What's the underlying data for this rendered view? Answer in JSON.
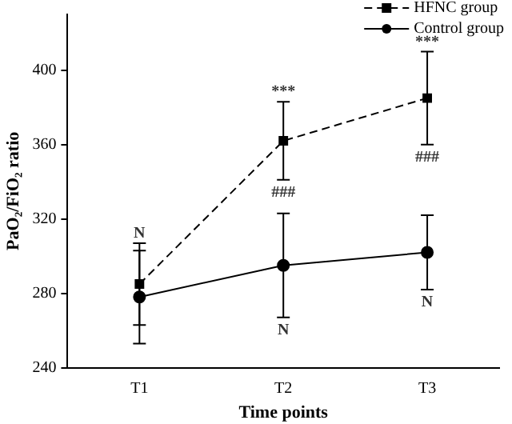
{
  "chart_data": {
    "type": "line",
    "xlabel": "Time points",
    "ylabel": "PaO₂/FiO₂ ratio",
    "categories": [
      "T1",
      "T2",
      "T3"
    ],
    "series": [
      {
        "name": "HFNC group",
        "color": "#000000",
        "marker": "square",
        "line_style": "dashed",
        "values": [
          285,
          362,
          385
        ],
        "errors": [
          [
            263,
            307
          ],
          [
            341,
            383
          ],
          [
            360,
            410
          ]
        ]
      },
      {
        "name": "Control group",
        "color": "#000000",
        "marker": "circle",
        "line_style": "solid",
        "values": [
          278,
          295,
          302
        ],
        "errors": [
          [
            253,
            303
          ],
          [
            267,
            323
          ],
          [
            282,
            322
          ]
        ]
      }
    ],
    "ylim": [
      240,
      430
    ],
    "yticks": [
      240,
      280,
      320,
      360,
      400
    ],
    "grid": false,
    "legend": "top right",
    "annotations": [
      {
        "text": "N",
        "x": "T1",
        "y": 307
      },
      {
        "text": "***",
        "x": "T2",
        "y": 383
      },
      {
        "text": "###",
        "x": "T2",
        "y": 341
      },
      {
        "text": "N",
        "x": "T2",
        "y": 267
      },
      {
        "text": "***",
        "x": "T3",
        "y": 410
      },
      {
        "text": "###",
        "x": "T3",
        "y": 360
      },
      {
        "text": "N",
        "x": "T3",
        "y": 282
      }
    ]
  }
}
